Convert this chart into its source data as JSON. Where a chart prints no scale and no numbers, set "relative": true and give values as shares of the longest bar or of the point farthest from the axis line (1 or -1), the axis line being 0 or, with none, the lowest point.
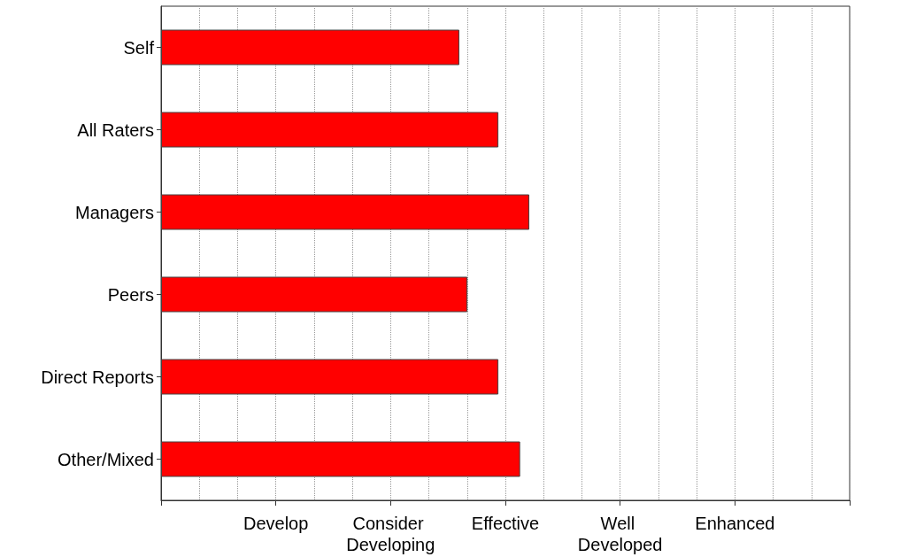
{
  "chart_data": {
    "type": "bar",
    "orientation": "horizontal",
    "relative": true,
    "categories": [
      "Self",
      "All Raters",
      "Managers",
      "Peers",
      "Direct Reports",
      "Other/Mixed"
    ],
    "values": [
      0.81,
      0.916,
      1,
      0.832,
      0.916,
      0.975
    ],
    "color": "#ff0000",
    "annotations": [
      "Develop",
      "Consider Developing",
      "Effective",
      "Well Developed",
      "Enhanced"
    ],
    "grid": "x"
  }
}
